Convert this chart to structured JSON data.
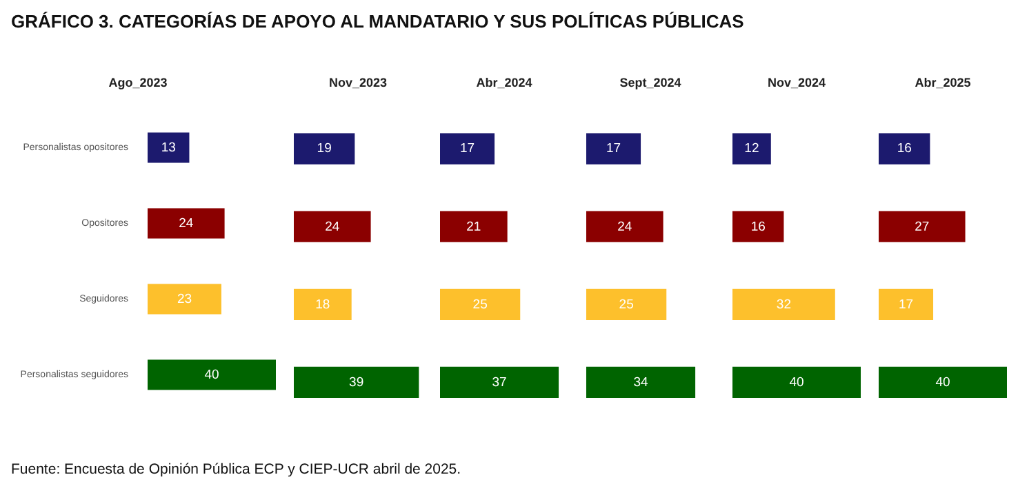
{
  "chart_data": [
    {
      "type": "bar",
      "orientation": "horizontal",
      "title": "Ago_2023",
      "categories": [
        "Personalistas opositores",
        "Opositores",
        "Seguidores",
        "Personalistas seguidores"
      ],
      "values": [
        13,
        24,
        23,
        40
      ],
      "colors": [
        "#1c1a6e",
        "#8b0000",
        "#fdc02c",
        "#006400"
      ],
      "data_labels": true,
      "tick_labels": "y",
      "annotations": [
        "GRÁFICO 3. CATEGORÍAS DE APOYO AL MANDATARIO Y SUS POLÍTICAS PÚBLICAS",
        "Fuente: Encuesta de Opinión Pública ECP y CIEP-UCR abril de 2025."
      ]
    },
    {
      "type": "bar",
      "orientation": "horizontal",
      "title": "Nov_2023",
      "categories": [
        null,
        null,
        null,
        null
      ],
      "values": [
        19,
        24,
        18,
        39
      ],
      "colors": [
        "#1c1a6e",
        "#8b0000",
        "#fdc02c",
        "#006400"
      ],
      "data_labels": true,
      "tick_labels": false
    },
    {
      "type": "bar",
      "orientation": "horizontal",
      "title": "Abr_2024",
      "categories": [
        null,
        null,
        null,
        null
      ],
      "values": [
        17,
        21,
        25,
        37
      ],
      "colors": [
        "#1c1a6e",
        "#8b0000",
        "#fdc02c",
        "#006400"
      ],
      "data_labels": true,
      "tick_labels": false
    },
    {
      "type": "bar",
      "orientation": "horizontal",
      "title": "Sept_2024",
      "categories": [
        null,
        null,
        null,
        null
      ],
      "values": [
        17,
        24,
        25,
        34
      ],
      "colors": [
        "#1c1a6e",
        "#8b0000",
        "#fdc02c",
        "#006400"
      ],
      "data_labels": true,
      "tick_labels": false
    },
    {
      "type": "bar",
      "orientation": "horizontal",
      "title": "Nov_2024",
      "categories": [
        null,
        null,
        null,
        null
      ],
      "values": [
        12,
        16,
        32,
        40
      ],
      "colors": [
        "#1c1a6e",
        "#8b0000",
        "#fdc02c",
        "#006400"
      ],
      "data_labels": true,
      "tick_labels": false
    },
    {
      "type": "bar",
      "orientation": "horizontal",
      "title": "Abr_2025",
      "categories": [
        null,
        null,
        null,
        null
      ],
      "values": [
        16,
        27,
        17,
        40
      ],
      "colors": [
        "#1c1a6e",
        "#8b0000",
        "#fdc02c",
        "#006400"
      ],
      "data_labels": true,
      "tick_labels": false
    }
  ]
}
